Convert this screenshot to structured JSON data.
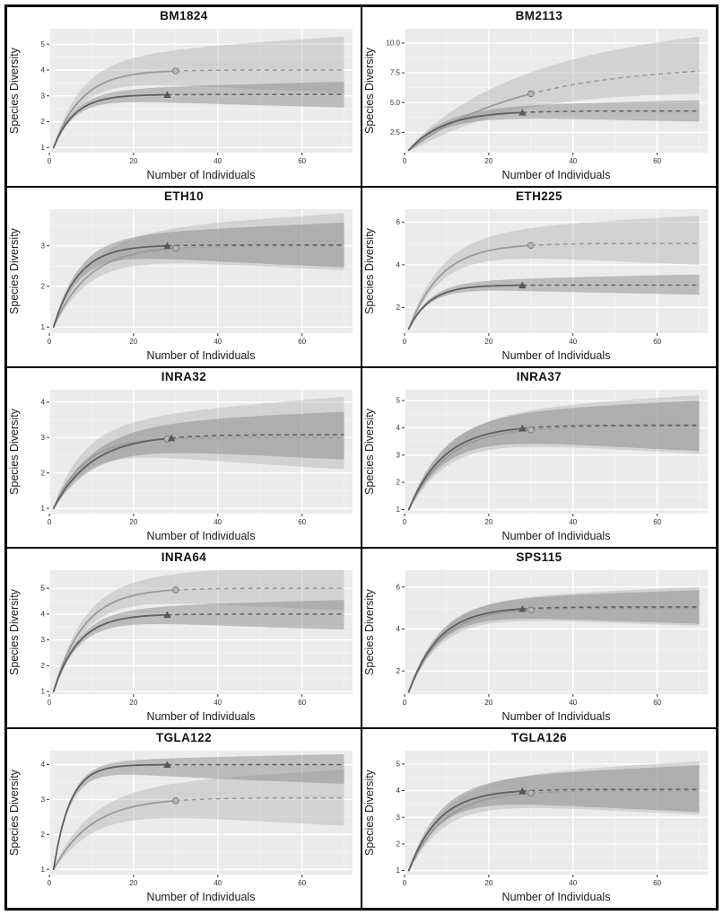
{
  "figure": {
    "xlabel": "Number of Individuals",
    "ylabel": "Species Diversity"
  },
  "style": {
    "panel_bg": "#ebebeb",
    "grid_major": "#ffffff",
    "grid_minor": "#f6f6f6",
    "series_dark": "#606060",
    "series_light": "#9b9b9b",
    "ribbon_dark": "rgba(125,125,125,0.42)",
    "ribbon_light": "rgba(170,170,170,0.38)",
    "marker_circle_fill": "#b7b7b7",
    "marker_circle_stroke": "#7d7d7d",
    "marker_triangle_fill": "#565656",
    "tick_color": "#333333",
    "label_color": "#1a1a1a"
  },
  "chart_data": [
    {
      "type": "line",
      "title": "BM1824",
      "xlabel": "Number of Individuals",
      "ylabel": "Species Diversity",
      "xlim": [
        0,
        72
      ],
      "xticks": [
        0,
        20,
        40,
        60
      ],
      "xtick_labels": [
        "0",
        "20",
        "40",
        "60"
      ],
      "ylim": [
        0.8,
        5.6
      ],
      "yticks": [
        1,
        2,
        3,
        4,
        5
      ],
      "ytick_labels": [
        "1",
        "2",
        "3",
        "4",
        "5"
      ],
      "series": [
        {
          "name": "curve-circle",
          "tone": "light",
          "marker": "circle",
          "y0": 1,
          "asymptote": 4.0,
          "k": 0.15,
          "observed_end": 30,
          "extrapolate_end": 70,
          "band_upper": 1.3,
          "band_lower": 0.9
        },
        {
          "name": "curve-triangle",
          "tone": "dark",
          "marker": "triangle",
          "y0": 1,
          "asymptote": 3.05,
          "k": 0.2,
          "observed_end": 28,
          "extrapolate_end": 70,
          "band_upper": 0.5,
          "band_lower": 0.5
        }
      ]
    },
    {
      "type": "line",
      "title": "BM2113",
      "xlabel": "Number of Individuals",
      "ylabel": "Species Diversity",
      "xlim": [
        0,
        72
      ],
      "xticks": [
        0,
        20,
        40,
        60
      ],
      "xtick_labels": [
        "0",
        "20",
        "40",
        "60"
      ],
      "ylim": [
        0.8,
        11.2
      ],
      "yticks": [
        2.5,
        5.0,
        7.5,
        10.0
      ],
      "ytick_labels": [
        "2.5",
        "5.0",
        "7.5",
        "10.0"
      ],
      "series": [
        {
          "name": "curve-circle",
          "tone": "light",
          "marker": "circle",
          "y0": 1,
          "asymptote": 8.2,
          "k": 0.037,
          "observed_end": 30,
          "extrapolate_end": 70,
          "band_upper": 2.9,
          "band_lower": 1.9
        },
        {
          "name": "curve-triangle",
          "tone": "dark",
          "marker": "triangle",
          "y0": 1,
          "asymptote": 4.3,
          "k": 0.12,
          "observed_end": 28,
          "extrapolate_end": 70,
          "band_upper": 0.9,
          "band_lower": 0.9
        }
      ]
    },
    {
      "type": "line",
      "title": "ETH10",
      "xlabel": "Number of Individuals",
      "ylabel": "Species Diversity",
      "xlim": [
        0,
        72
      ],
      "xticks": [
        0,
        20,
        40,
        60
      ],
      "xtick_labels": [
        "0",
        "20",
        "40",
        "60"
      ],
      "ylim": [
        0.85,
        3.9
      ],
      "yticks": [
        1,
        2,
        3
      ],
      "ytick_labels": [
        "1",
        "2",
        "3"
      ],
      "series": [
        {
          "name": "curve-circle",
          "tone": "light",
          "marker": "circle",
          "y0": 1,
          "asymptote": 3.0,
          "k": 0.12,
          "observed_end": 30,
          "extrapolate_end": 70,
          "band_upper": 0.8,
          "band_lower": 0.6
        },
        {
          "name": "curve-triangle",
          "tone": "dark",
          "marker": "triangle",
          "y0": 1,
          "asymptote": 3.02,
          "k": 0.17,
          "observed_end": 28,
          "extrapolate_end": 70,
          "band_upper": 0.55,
          "band_lower": 0.55
        }
      ]
    },
    {
      "type": "line",
      "title": "ETH225",
      "xlabel": "Number of Individuals",
      "ylabel": "Species Diversity",
      "xlim": [
        0,
        72
      ],
      "xticks": [
        0,
        20,
        40,
        60
      ],
      "xtick_labels": [
        "0",
        "20",
        "40",
        "60"
      ],
      "ylim": [
        0.8,
        6.6
      ],
      "yticks": [
        2,
        4,
        6
      ],
      "ytick_labels": [
        "2",
        "4",
        "6"
      ],
      "series": [
        {
          "name": "curve-circle",
          "tone": "light",
          "marker": "circle",
          "y0": 1,
          "asymptote": 5.0,
          "k": 0.13,
          "observed_end": 30,
          "extrapolate_end": 70,
          "band_upper": 1.3,
          "band_lower": 1.0
        },
        {
          "name": "curve-triangle",
          "tone": "dark",
          "marker": "triangle",
          "y0": 1,
          "asymptote": 3.05,
          "k": 0.2,
          "observed_end": 28,
          "extrapolate_end": 70,
          "band_upper": 0.5,
          "band_lower": 0.45
        }
      ]
    },
    {
      "type": "line",
      "title": "INRA32",
      "xlabel": "Number of Individuals",
      "ylabel": "Species Diversity",
      "xlim": [
        0,
        72
      ],
      "xticks": [
        0,
        20,
        40,
        60
      ],
      "xtick_labels": [
        "0",
        "20",
        "40",
        "60"
      ],
      "ylim": [
        0.85,
        4.35
      ],
      "yticks": [
        1,
        2,
        3,
        4
      ],
      "ytick_labels": [
        "1",
        "2",
        "3",
        "4"
      ],
      "series": [
        {
          "name": "curve-circle",
          "tone": "light",
          "marker": "circle",
          "y0": 1,
          "asymptote": 3.0,
          "k": 0.14,
          "observed_end": 28,
          "extrapolate_end": 70,
          "band_upper": 1.15,
          "band_lower": 0.9
        },
        {
          "name": "curve-triangle",
          "tone": "dark",
          "marker": "triangle",
          "y0": 1,
          "asymptote": 3.08,
          "k": 0.11,
          "observed_end": 29,
          "extrapolate_end": 70,
          "band_upper": 0.65,
          "band_lower": 0.7
        }
      ]
    },
    {
      "type": "line",
      "title": "INRA37",
      "xlabel": "Number of Individuals",
      "ylabel": "Species Diversity",
      "xlim": [
        0,
        72
      ],
      "xticks": [
        0,
        20,
        40,
        60
      ],
      "xtick_labels": [
        "0",
        "20",
        "40",
        "60"
      ],
      "ylim": [
        0.85,
        5.4
      ],
      "yticks": [
        1,
        2,
        3,
        4,
        5
      ],
      "ytick_labels": [
        "1",
        "2",
        "3",
        "4",
        "5"
      ],
      "series": [
        {
          "name": "curve-circle",
          "tone": "light",
          "marker": "circle",
          "y0": 1,
          "asymptote": 4.05,
          "k": 0.11,
          "observed_end": 30,
          "extrapolate_end": 70,
          "band_upper": 1.15,
          "band_lower": 1.0
        },
        {
          "name": "curve-triangle",
          "tone": "dark",
          "marker": "triangle",
          "y0": 1,
          "asymptote": 4.1,
          "k": 0.12,
          "observed_end": 28,
          "extrapolate_end": 70,
          "band_upper": 0.9,
          "band_lower": 0.95
        }
      ]
    },
    {
      "type": "line",
      "title": "INRA64",
      "xlabel": "Number of Individuals",
      "ylabel": "Species Diversity",
      "xlim": [
        0,
        72
      ],
      "xticks": [
        0,
        20,
        40,
        60
      ],
      "xtick_labels": [
        "0",
        "20",
        "40",
        "60"
      ],
      "ylim": [
        0.9,
        5.7
      ],
      "yticks": [
        1,
        2,
        3,
        4,
        5
      ],
      "ytick_labels": [
        "1",
        "2",
        "3",
        "4",
        "5"
      ],
      "series": [
        {
          "name": "curve-circle",
          "tone": "light",
          "marker": "circle",
          "y0": 1,
          "asymptote": 5.0,
          "k": 0.14,
          "observed_end": 30,
          "extrapolate_end": 70,
          "band_upper": 1.0,
          "band_lower": 0.85
        },
        {
          "name": "curve-triangle",
          "tone": "dark",
          "marker": "triangle",
          "y0": 1,
          "asymptote": 4.0,
          "k": 0.17,
          "observed_end": 28,
          "extrapolate_end": 70,
          "band_upper": 0.55,
          "band_lower": 0.6
        }
      ]
    },
    {
      "type": "line",
      "title": "SPS115",
      "xlabel": "Number of Individuals",
      "ylabel": "Species Diversity",
      "xlim": [
        0,
        72
      ],
      "xticks": [
        0,
        20,
        40,
        60
      ],
      "xtick_labels": [
        "0",
        "20",
        "40",
        "60"
      ],
      "ylim": [
        0.9,
        6.8
      ],
      "yticks": [
        2,
        4,
        6
      ],
      "ytick_labels": [
        "2",
        "4",
        "6"
      ],
      "series": [
        {
          "name": "curve-circle",
          "tone": "light",
          "marker": "circle",
          "y0": 1,
          "asymptote": 5.0,
          "k": 0.13,
          "observed_end": 30,
          "extrapolate_end": 70,
          "band_upper": 1.0,
          "band_lower": 0.85
        },
        {
          "name": "curve-triangle",
          "tone": "dark",
          "marker": "triangle",
          "y0": 1,
          "asymptote": 5.05,
          "k": 0.14,
          "observed_end": 28,
          "extrapolate_end": 70,
          "band_upper": 0.8,
          "band_lower": 0.8
        }
      ]
    },
    {
      "type": "line",
      "title": "TGLA122",
      "xlabel": "Number of Individuals",
      "ylabel": "Species Diversity",
      "xlim": [
        0,
        72
      ],
      "xticks": [
        0,
        20,
        40,
        60
      ],
      "xtick_labels": [
        "0",
        "20",
        "40",
        "60"
      ],
      "ylim": [
        0.85,
        4.4
      ],
      "yticks": [
        1,
        2,
        3,
        4
      ],
      "ytick_labels": [
        "1",
        "2",
        "3",
        "4"
      ],
      "series": [
        {
          "name": "curve-circle",
          "tone": "light",
          "marker": "circle",
          "y0": 1,
          "asymptote": 3.05,
          "k": 0.11,
          "observed_end": 30,
          "extrapolate_end": 70,
          "band_upper": 0.8,
          "band_lower": 0.8
        },
        {
          "name": "curve-triangle",
          "tone": "dark",
          "marker": "triangle",
          "y0": 1,
          "asymptote": 4.0,
          "k": 0.26,
          "observed_end": 28,
          "extrapolate_end": 70,
          "band_upper": 0.3,
          "band_lower": 0.55
        }
      ]
    },
    {
      "type": "line",
      "title": "TGLA126",
      "xlabel": "Number of Individuals",
      "ylabel": "Species Diversity",
      "xlim": [
        0,
        72
      ],
      "xticks": [
        0,
        20,
        40,
        60
      ],
      "xtick_labels": [
        "0",
        "20",
        "40",
        "60"
      ],
      "ylim": [
        0.85,
        5.5
      ],
      "yticks": [
        1,
        2,
        3,
        4,
        5
      ],
      "ytick_labels": [
        "1",
        "2",
        "3",
        "4",
        "5"
      ],
      "series": [
        {
          "name": "curve-circle",
          "tone": "light",
          "marker": "circle",
          "y0": 1,
          "asymptote": 4.0,
          "k": 0.12,
          "observed_end": 30,
          "extrapolate_end": 70,
          "band_upper": 1.1,
          "band_lower": 0.9
        },
        {
          "name": "curve-triangle",
          "tone": "dark",
          "marker": "triangle",
          "y0": 1,
          "asymptote": 4.05,
          "k": 0.14,
          "observed_end": 28,
          "extrapolate_end": 70,
          "band_upper": 0.9,
          "band_lower": 0.85
        }
      ]
    }
  ]
}
